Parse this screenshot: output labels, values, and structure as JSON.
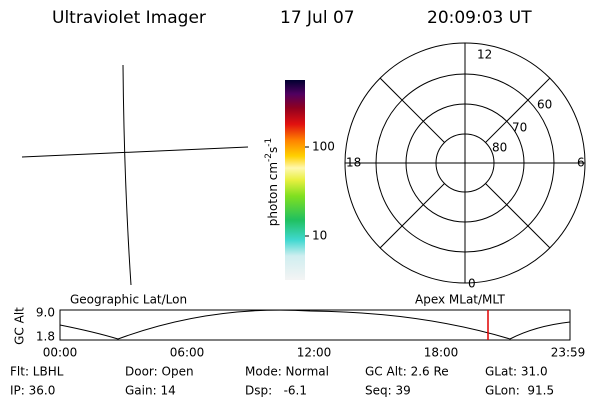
{
  "header": {
    "instrument": "Ultraviolet Imager",
    "date": "17 Jul 07",
    "time": "20:09:03 UT"
  },
  "colorbar": {
    "label_parts": [
      "photon cm",
      "-2",
      "s",
      "-1"
    ],
    "ticks": [
      "100",
      "10"
    ]
  },
  "polar": {
    "mlt_labels": [
      "12",
      "18",
      "6",
      "0"
    ],
    "lat_labels": [
      "60",
      "70",
      "80"
    ]
  },
  "timeline": {
    "y_label": "GC Alt",
    "y_ticks": [
      "9.0",
      "1.8"
    ],
    "left_label": "Geographic Lat/Lon",
    "right_label": "Apex MLat/MLT",
    "x_ticks": [
      "00:00",
      "06:00",
      "12:00",
      "18:00",
      "23:59"
    ]
  },
  "info": {
    "rows": [
      [
        "Flt: LBHL",
        "Door: Open",
        "Mode: Normal",
        "GC Alt: 2.6 Re",
        "GLat: 31.0"
      ],
      [
        "IP: 36.0",
        "Gain: 14",
        "Dsp:   -6.1",
        "Seq: 39",
        "GLon:  91.5"
      ]
    ]
  }
}
